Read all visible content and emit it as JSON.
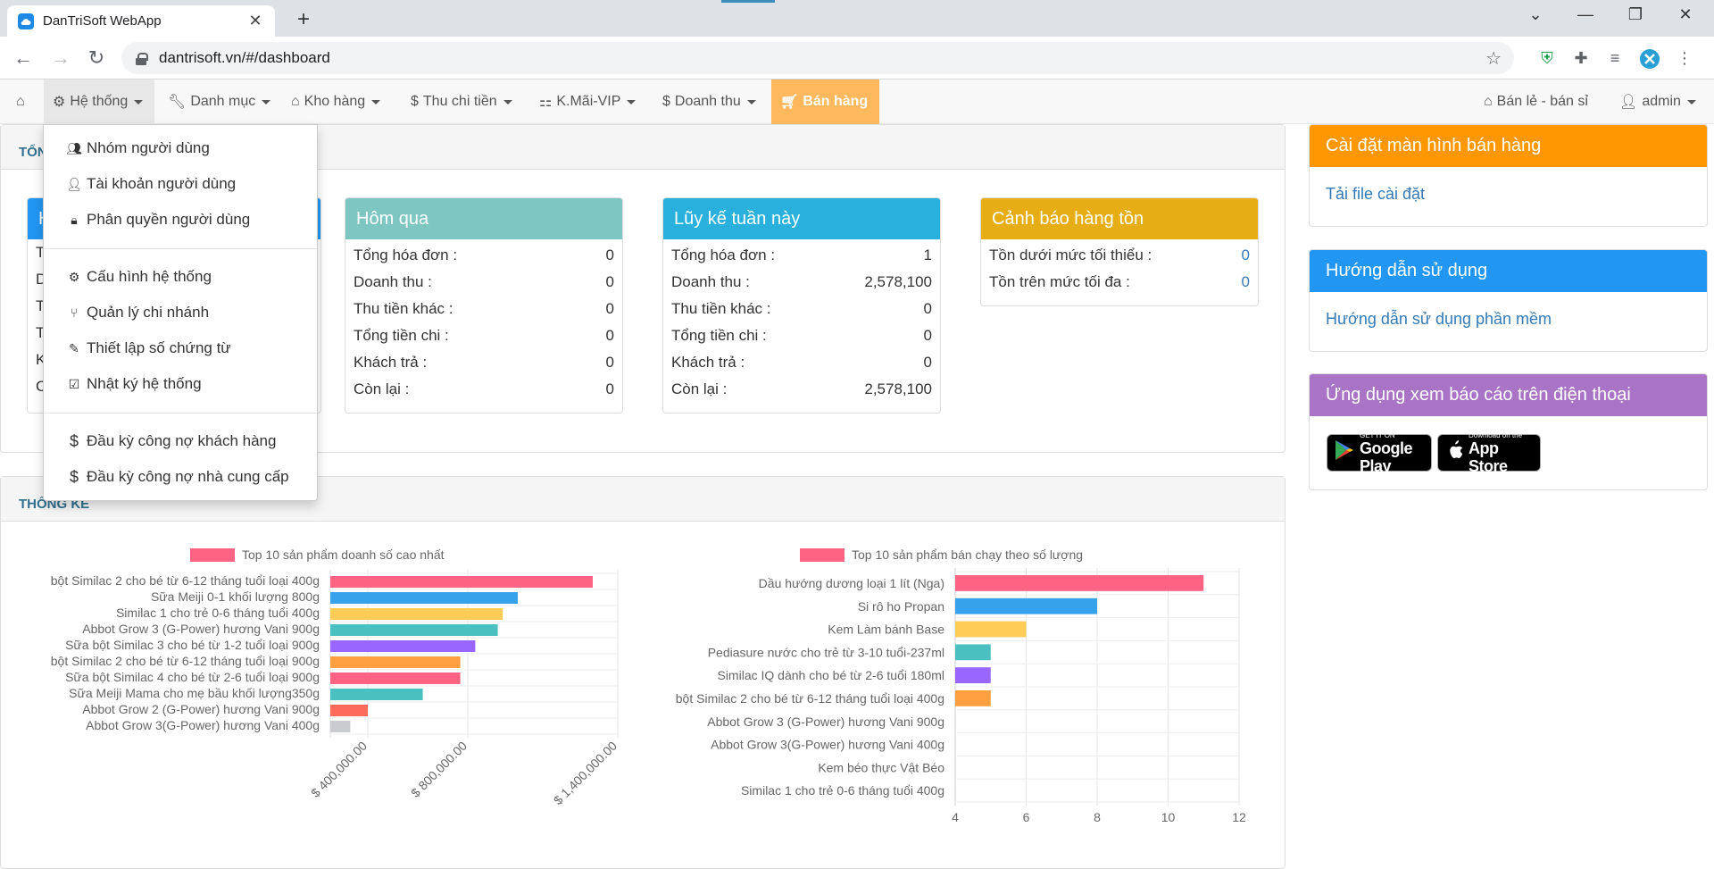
{
  "browser": {
    "tab_title": "DanTriSoft WebApp",
    "url": "dantrisoft.vn/#/dashboard"
  },
  "navbar": {
    "items": [
      {
        "label": "Hệ thống"
      },
      {
        "label": "Danh mục"
      },
      {
        "label": "Kho hàng"
      },
      {
        "label": "Thu chi tiền"
      },
      {
        "label": "K.Mãi-VIP"
      },
      {
        "label": "Doanh thu"
      },
      {
        "label": "Bán hàng"
      }
    ],
    "right": {
      "store": "Bán lẻ - bán sỉ",
      "user": "admin"
    }
  },
  "dropdown": {
    "items": [
      {
        "label": "Nhóm người dùng",
        "icon": "users-icon"
      },
      {
        "label": "Tài khoản người dùng",
        "icon": "user-icon"
      },
      {
        "label": "Phân quyền người dùng",
        "icon": "lock-icon"
      },
      {
        "label": "Cấu hình hệ thống",
        "icon": "cogs-icon"
      },
      {
        "label": "Quản lý chi nhánh",
        "icon": "branch-icon"
      },
      {
        "label": "Thiết lập số chứng từ",
        "icon": "edit-icon"
      },
      {
        "label": "Nhật ký hệ thống",
        "icon": "check-square-icon"
      },
      {
        "label": "Đầu kỳ công nợ khách hàng",
        "icon": "dollar-icon"
      },
      {
        "label": "Đầu kỳ công nợ nhà cung cấp",
        "icon": "dollar-icon"
      }
    ]
  },
  "summary": {
    "title_visible": "TỔN",
    "hidden_card_labels": [
      "T",
      "D",
      "T",
      "T",
      "K",
      "C"
    ],
    "hidden_card_head": "H",
    "cards": [
      {
        "title": "Hôm qua",
        "color": "#7dc6c2",
        "rows": [
          {
            "label": "Tổng hóa đơn :",
            "value": "0"
          },
          {
            "label": "Doanh thu :",
            "value": "0"
          },
          {
            "label": "Thu tiền khác :",
            "value": "0"
          },
          {
            "label": "Tổng tiền chi :",
            "value": "0"
          },
          {
            "label": "Khách trả :",
            "value": "0"
          },
          {
            "label": "Còn lại :",
            "value": "0"
          }
        ]
      },
      {
        "title": "Lũy kế tuần này",
        "color": "#2ab0dc",
        "rows": [
          {
            "label": "Tổng hóa đơn :",
            "value": "1"
          },
          {
            "label": "Doanh thu :",
            "value": "2,578,100"
          },
          {
            "label": "Thu tiền khác :",
            "value": "0"
          },
          {
            "label": "Tổng tiền chi :",
            "value": "0"
          },
          {
            "label": "Khách trả :",
            "value": "0"
          },
          {
            "label": "Còn lại :",
            "value": "2,578,100"
          }
        ]
      },
      {
        "title": "Cảnh báo hàng tồn",
        "color": "#e6ae14",
        "rows": [
          {
            "label": "Tồn dưới mức tối thiểu :",
            "value": "0"
          },
          {
            "label": "Tồn trên mức tối đa :",
            "value": "0"
          }
        ]
      }
    ]
  },
  "stats": {
    "title_visible": "THỐNG KÊ"
  },
  "sidebar": {
    "settings": {
      "title": "Cài đặt màn hình bán hàng",
      "link": "Tải file cài đặt",
      "color": "#ff9800"
    },
    "guide": {
      "title": "Hướng dẫn sử dụng",
      "link": "Hướng dẫn sử dụng phần mềm",
      "color": "#2196f3"
    },
    "mobile": {
      "title": "Ứng dụng xem báo cáo trên điện thoại",
      "color": "#a974c6",
      "google": {
        "small": "GET IT ON",
        "big": "Google Play"
      },
      "apple": {
        "small": "Download on the",
        "big": "App Store"
      }
    }
  },
  "chart_data": [
    {
      "type": "bar",
      "orientation": "horizontal",
      "legend": "Top 10 sản phẩm doanh số cao nhất",
      "categories": [
        "bột Similac 2  cho bé từ 6-12 tháng  tuổi loại 400g",
        "Sữa Meiji 0-1 khối lượng 800g",
        "Similac 1 cho trẻ 0-6 tháng tuổi 400g",
        "Abbot Grow 3 (G-Power) hương Vani 900g",
        "Sữa bột Similac 3  cho bé từ 1-2 tuổi  loại 900g",
        "bột Similac 2 cho bé từ 6-12 tháng tuổi loại 900g",
        "Sữa bột Similac 4 cho bé từ 2-6 tuổi loại 900g",
        "Sữa Meiji Mama cho mẹ bầu khối lượng350g",
        "Abbot Grow 2 (G-Power) hương Vani 900g",
        "Abbot Grow 3(G-Power) hương Vani 400g"
      ],
      "values": [
        1300000,
        1000000,
        940000,
        920000,
        830000,
        770000,
        770000,
        620000,
        400000,
        330000
      ],
      "colors": [
        "#ff6384",
        "#36a2eb",
        "#ffcd56",
        "#4bc0c0",
        "#9966ff",
        "#ff9f40",
        "#ff6384",
        "#4bc0c0",
        "#ff6b5b",
        "#c9cbcf"
      ],
      "xticks": [
        "$ 400,000.00",
        "$ 800,000.00",
        "$ 1,400,000.00"
      ],
      "xlim": [
        250000,
        1400000
      ]
    },
    {
      "type": "bar",
      "orientation": "horizontal",
      "legend": "Top 10 sản phẩm bán chạy theo số lượng",
      "categories": [
        "Dầu hướng dương loại 1 lít (Nga)",
        "Si rô ho Propan",
        "Kem Làm bánh Base",
        "Pediasure nước cho trẻ từ 3-10 tuổi-237ml",
        "Similac IQ dành cho bé từ 2-6 tuổi 180ml",
        "bột Similac 2  cho bé từ 6-12 tháng  tuổi loại 400g",
        "Abbot Grow 3 (G-Power) hương Vani 900g",
        "Abbot Grow 3(G-Power) hương Vani 400g",
        "Kem béo thực Vật Béo",
        "Similac 1 cho trẻ 0-6 tháng tuổi 400g"
      ],
      "values": [
        11,
        8,
        6,
        5,
        5,
        5,
        4,
        4,
        4,
        4
      ],
      "colors": [
        "#ff6384",
        "#36a2eb",
        "#ffcd56",
        "#4bc0c0",
        "#9966ff",
        "#ff9f40",
        "#ff6384",
        "#36a2eb",
        "#ffcd56",
        "#4bc0c0"
      ],
      "xticks": [
        "4",
        "6",
        "8",
        "10",
        "12"
      ],
      "xlim": [
        4,
        12
      ]
    }
  ]
}
